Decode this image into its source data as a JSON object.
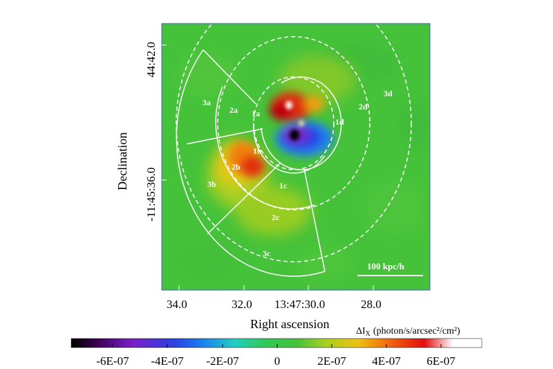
{
  "figure": {
    "x_axis": {
      "label": "Right ascension",
      "ticks": [
        "34.0",
        "32.0",
        "13:47:30.0",
        "28.0"
      ]
    },
    "y_axis": {
      "label": "Declination",
      "ticks": [
        "44:42.0",
        "-11:45:36.0"
      ]
    },
    "regions": [
      "1a",
      "1b",
      "1c",
      "1d",
      "2a",
      "2b",
      "2c",
      "2d",
      "3a",
      "3b",
      "3c",
      "3d"
    ],
    "scale_bar": {
      "label": "100 kpc/h"
    },
    "colorbar": {
      "title_prefix": "ΔI",
      "title_sub": "X",
      "title_units": "(photon/s/arcsec²/cm²)",
      "ticks": [
        "-6E-07",
        "-4E-07",
        "-2E-07",
        "0",
        "2E-07",
        "4E-07",
        "6E-07"
      ]
    },
    "colors": {
      "background_map": "#46c23a",
      "contours": "#ffffff",
      "positive": "#e01010",
      "negative": "#1020d0"
    }
  }
}
